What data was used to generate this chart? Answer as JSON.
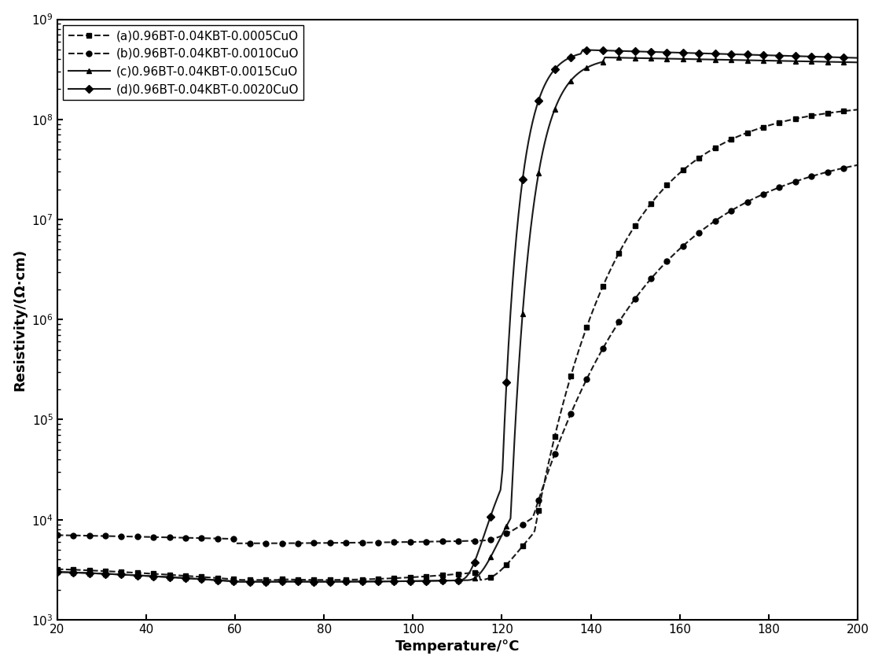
{
  "xlabel": "Temperature/°C",
  "ylabel": "Resistivity/(Ω·cm)",
  "xlim": [
    20,
    200
  ],
  "ylim": [
    1000.0,
    1000000000.0
  ],
  "xticks": [
    20,
    40,
    60,
    80,
    100,
    120,
    140,
    160,
    180,
    200
  ],
  "series": [
    {
      "label": "(a)0.96BT-0.04KBT-0.0005CuO",
      "marker": "s",
      "linestyle": "--"
    },
    {
      "label": "(b)0.96BT-0.04KBT-0.0010CuO",
      "marker": "o",
      "linestyle": "--"
    },
    {
      "label": "(c)0.96BT-0.04KBT-0.0015CuO",
      "marker": "^",
      "linestyle": "-"
    },
    {
      "label": "(d)0.96BT-0.04KBT-0.0020CuO",
      "marker": "D",
      "linestyle": "-"
    }
  ],
  "color": "#1a1a1a",
  "figure_facecolor": "#ffffff",
  "axes_facecolor": "#ffffff",
  "linewidth": 1.5,
  "markersize": 5,
  "legend_fontsize": 11,
  "axis_fontsize": 13,
  "tick_fontsize": 11
}
